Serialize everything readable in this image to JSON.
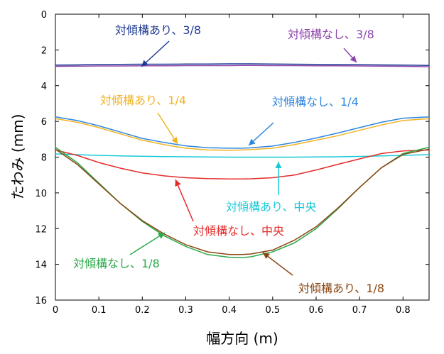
{
  "chart_data": {
    "type": "line",
    "xlabel": "幅方向 (m)",
    "ylabel": "たわみ (mm)",
    "xlim": [
      0,
      0.86
    ],
    "ylim": [
      0,
      16
    ],
    "y_inverted": true,
    "grid": false,
    "x_ticks": [
      "0",
      "0.1",
      "0.2",
      "0.3",
      "0.4",
      "0.5",
      "0.6",
      "0.7",
      "0.8"
    ],
    "y_ticks": [
      "0",
      "2",
      "4",
      "6",
      "8",
      "10",
      "12",
      "14",
      "16"
    ],
    "x": [
      0,
      0.05,
      0.1,
      0.15,
      0.2,
      0.25,
      0.3,
      0.35,
      0.4,
      0.43,
      0.45,
      0.5,
      0.55,
      0.6,
      0.65,
      0.7,
      0.75,
      0.8,
      0.86
    ],
    "series": [
      {
        "name": "対傾構あり、3/8",
        "color": "#1f3a93",
        "values": [
          2.85,
          2.84,
          2.82,
          2.81,
          2.8,
          2.8,
          2.79,
          2.79,
          2.78,
          2.78,
          2.78,
          2.79,
          2.8,
          2.81,
          2.82,
          2.83,
          2.84,
          2.85,
          2.87
        ]
      },
      {
        "name": "対傾構なし、3/8",
        "color": "#8e44ad",
        "values": [
          2.92,
          2.91,
          2.9,
          2.9,
          2.89,
          2.89,
          2.88,
          2.88,
          2.88,
          2.87,
          2.87,
          2.88,
          2.88,
          2.89,
          2.89,
          2.9,
          2.91,
          2.92,
          2.94
        ]
      },
      {
        "name": "対傾構あり、1/4",
        "color": "#f0b323",
        "values": [
          5.85,
          6.05,
          6.35,
          6.7,
          7.05,
          7.3,
          7.5,
          7.6,
          7.62,
          7.6,
          7.58,
          7.5,
          7.3,
          7.05,
          6.8,
          6.5,
          6.2,
          5.95,
          5.85
        ]
      },
      {
        "name": "対傾構なし、1/4",
        "color": "#2e86de",
        "values": [
          5.75,
          5.95,
          6.25,
          6.6,
          6.95,
          7.18,
          7.37,
          7.47,
          7.5,
          7.5,
          7.48,
          7.38,
          7.18,
          6.93,
          6.65,
          6.35,
          6.05,
          5.82,
          5.75
        ]
      },
      {
        "name": "対傾構あり、中央",
        "color": "#19c9d6",
        "values": [
          7.82,
          7.86,
          7.9,
          7.93,
          7.95,
          7.97,
          7.98,
          7.99,
          8.0,
          8.0,
          8.0,
          8.0,
          8.0,
          7.99,
          7.98,
          7.96,
          7.93,
          7.9,
          7.86
        ]
      },
      {
        "name": "対傾構なし、中央",
        "color": "#e52b2b",
        "values": [
          7.6,
          7.9,
          8.3,
          8.62,
          8.88,
          9.05,
          9.15,
          9.2,
          9.22,
          9.22,
          9.21,
          9.15,
          9.0,
          8.72,
          8.4,
          8.1,
          7.8,
          7.65,
          7.6
        ]
      },
      {
        "name": "対傾構なし、1/8",
        "color": "#2ca84a",
        "values": [
          7.45,
          8.3,
          9.45,
          10.6,
          11.6,
          12.4,
          13.0,
          13.45,
          13.6,
          13.62,
          13.58,
          13.3,
          12.8,
          12.0,
          10.9,
          9.7,
          8.6,
          7.8,
          7.45
        ]
      },
      {
        "name": "対傾構あり、1/8",
        "color": "#8b4513",
        "values": [
          7.55,
          8.4,
          9.5,
          10.6,
          11.55,
          12.3,
          12.9,
          13.3,
          13.45,
          13.45,
          13.42,
          13.2,
          12.65,
          11.9,
          10.85,
          9.7,
          8.6,
          7.85,
          7.55
        ]
      }
    ]
  },
  "annotations": [
    {
      "text": "対傾構あり、3/8",
      "color": "#1f3a93"
    },
    {
      "text": "対傾構なし、3/8",
      "color": "#8e44ad"
    },
    {
      "text": "対傾構あり、1/4",
      "color": "#f0b323"
    },
    {
      "text": "対傾構なし、1/4",
      "color": "#2e86de"
    },
    {
      "text": "対傾構あり、中央",
      "color": "#19c9d6"
    },
    {
      "text": "対傾構なし、中央",
      "color": "#e52b2b"
    },
    {
      "text": "対傾構なし、1/8",
      "color": "#2ca84a"
    },
    {
      "text": "対傾構あり、1/8",
      "color": "#8b4513"
    }
  ]
}
